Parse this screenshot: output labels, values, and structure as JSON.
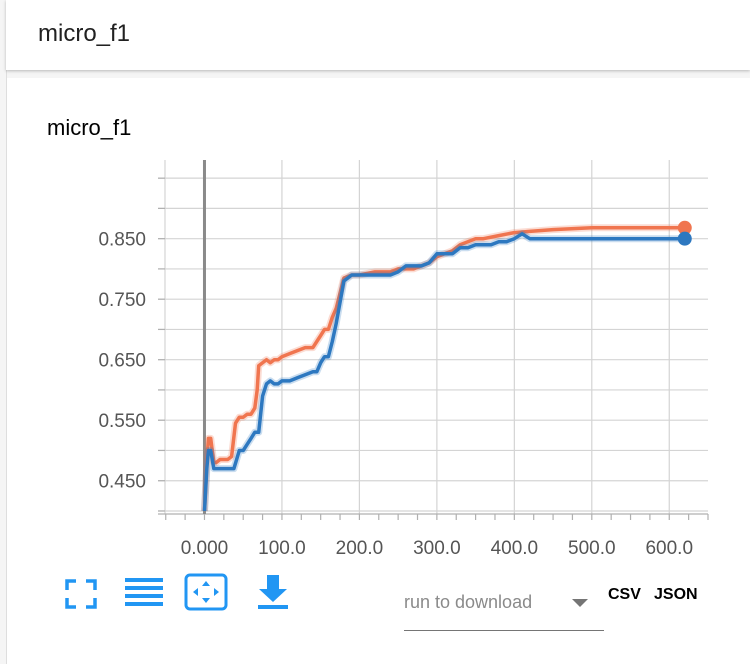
{
  "header": {
    "title": "micro_f1"
  },
  "card": {
    "title": "micro_f1"
  },
  "chart_data": {
    "type": "line",
    "title": "micro_f1",
    "xlabel": "",
    "ylabel": "",
    "x_ticks": [
      "0.000",
      "100.0",
      "200.0",
      "300.0",
      "400.0",
      "500.0",
      "600.0"
    ],
    "y_ticks": [
      "0.450",
      "0.550",
      "0.650",
      "0.750",
      "0.850"
    ],
    "xlim": [
      -60,
      650
    ],
    "ylim": [
      0.395,
      0.98
    ],
    "grid": true,
    "series": [
      {
        "color": "#f0754f",
        "x": [
          0,
          3,
          5,
          8,
          12,
          15,
          20,
          30,
          35,
          40,
          45,
          50,
          55,
          60,
          65,
          68,
          70,
          75,
          80,
          85,
          90,
          95,
          100,
          110,
          120,
          130,
          140,
          145,
          150,
          155,
          160,
          165,
          170,
          180,
          190,
          200,
          220,
          240,
          250,
          260,
          270,
          280,
          290,
          300,
          310,
          320,
          330,
          340,
          350,
          360,
          380,
          400,
          420,
          450,
          500,
          550,
          600,
          620
        ],
        "y": [
          0.4,
          0.48,
          0.52,
          0.52,
          0.48,
          0.48,
          0.485,
          0.485,
          0.49,
          0.545,
          0.555,
          0.555,
          0.56,
          0.56,
          0.57,
          0.6,
          0.64,
          0.645,
          0.65,
          0.645,
          0.65,
          0.65,
          0.655,
          0.66,
          0.665,
          0.67,
          0.67,
          0.68,
          0.69,
          0.7,
          0.7,
          0.72,
          0.735,
          0.785,
          0.79,
          0.79,
          0.795,
          0.795,
          0.8,
          0.8,
          0.8,
          0.805,
          0.81,
          0.82,
          0.825,
          0.83,
          0.84,
          0.845,
          0.85,
          0.85,
          0.855,
          0.86,
          0.862,
          0.865,
          0.868,
          0.868,
          0.868,
          0.868
        ]
      },
      {
        "color": "#2d78c0",
        "x": [
          0,
          3,
          5,
          8,
          12,
          20,
          30,
          38,
          45,
          50,
          55,
          60,
          65,
          70,
          75,
          80,
          85,
          90,
          95,
          100,
          110,
          120,
          130,
          140,
          145,
          150,
          155,
          160,
          165,
          170,
          180,
          190,
          200,
          220,
          240,
          250,
          260,
          280,
          290,
          300,
          310,
          320,
          330,
          340,
          350,
          360,
          370,
          380,
          390,
          400,
          410,
          420,
          450,
          500,
          550,
          600,
          620
        ],
        "y": [
          0.4,
          0.47,
          0.5,
          0.5,
          0.47,
          0.47,
          0.47,
          0.47,
          0.5,
          0.5,
          0.51,
          0.52,
          0.53,
          0.53,
          0.59,
          0.61,
          0.615,
          0.61,
          0.61,
          0.615,
          0.615,
          0.62,
          0.625,
          0.63,
          0.63,
          0.645,
          0.655,
          0.655,
          0.68,
          0.71,
          0.78,
          0.79,
          0.79,
          0.79,
          0.79,
          0.795,
          0.805,
          0.805,
          0.81,
          0.825,
          0.825,
          0.825,
          0.835,
          0.835,
          0.84,
          0.84,
          0.84,
          0.845,
          0.845,
          0.85,
          0.858,
          0.85,
          0.85,
          0.85,
          0.85,
          0.85,
          0.85
        ]
      }
    ]
  },
  "toolbar": {
    "fullscreen_icon": "fullscreen-icon",
    "lines_icon": "lines-icon",
    "fit_icon": "fit-domain-icon",
    "download_icon": "download-icon"
  },
  "download": {
    "placeholder": "run to download",
    "csv_label": "CSV",
    "json_label": "JSON"
  },
  "colors": {
    "accent": "#2196f3",
    "series_orange": "#f0754f",
    "series_blue": "#2d78c0"
  }
}
